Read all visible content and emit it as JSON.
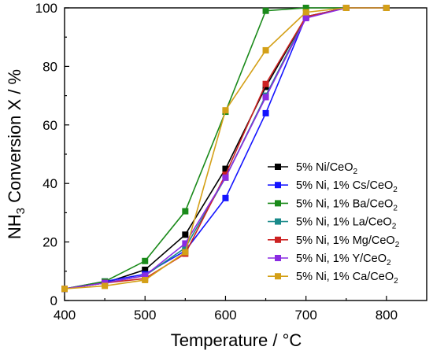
{
  "chart_data": {
    "type": "line",
    "xlabel": "Temperature / °C",
    "ylabel_main": "NH",
    "ylabel_sub": "3",
    "ylabel_rest": " Conversion X / %",
    "xlim": [
      400,
      850
    ],
    "ylim": [
      0,
      100
    ],
    "xticks": [
      400,
      500,
      600,
      700,
      800
    ],
    "yticks": [
      0,
      20,
      40,
      60,
      80,
      100
    ],
    "x": [
      400,
      450,
      500,
      550,
      600,
      650,
      700,
      750,
      800
    ],
    "legend_position": "center-right",
    "grid": false,
    "series": [
      {
        "name_main": "5% Ni/CeO",
        "name_sub": "2",
        "color": "#000000",
        "values": [
          4.0,
          6.0,
          10.5,
          22.5,
          45.0,
          73.0,
          97.0,
          100.0,
          100.0
        ]
      },
      {
        "name_main": "5% Ni, 1% Cs/CeO",
        "name_sub": "2",
        "color": "#1414ff",
        "values": [
          4.0,
          6.5,
          9.0,
          17.0,
          35.0,
          64.0,
          97.0,
          100.0,
          100.0
        ]
      },
      {
        "name_main": "5% Ni, 1% Ba/CeO",
        "name_sub": "2",
        "color": "#1a8a1a",
        "values": [
          4.0,
          6.5,
          13.5,
          30.5,
          64.5,
          99.0,
          100.0,
          100.0,
          100.0
        ]
      },
      {
        "name_main": "5% Ni, 1% La/CeO",
        "name_sub": "2",
        "color": "#1a8a8a",
        "values": [
          4.0,
          6.0,
          8.5,
          18.0,
          42.0,
          70.0,
          97.0,
          100.0,
          100.0
        ]
      },
      {
        "name_main": "5% Ni, 1% Mg/CeO",
        "name_sub": "2",
        "color": "#cc2222",
        "values": [
          4.0,
          6.0,
          7.5,
          16.0,
          43.0,
          74.0,
          97.0,
          100.0,
          100.0
        ]
      },
      {
        "name_main": "5% Ni, 1% Y/CeO",
        "name_sub": "2",
        "color": "#8a2be2",
        "values": [
          4.0,
          6.0,
          8.5,
          19.5,
          42.0,
          69.5,
          96.5,
          100.0,
          100.0
        ]
      },
      {
        "name_main": "5% Ni, 1% Ca/CeO",
        "name_sub": "2",
        "color": "#d4a017",
        "values": [
          4.0,
          5.0,
          7.0,
          16.5,
          65.0,
          85.5,
          98.5,
          100.0,
          100.0
        ]
      }
    ]
  }
}
